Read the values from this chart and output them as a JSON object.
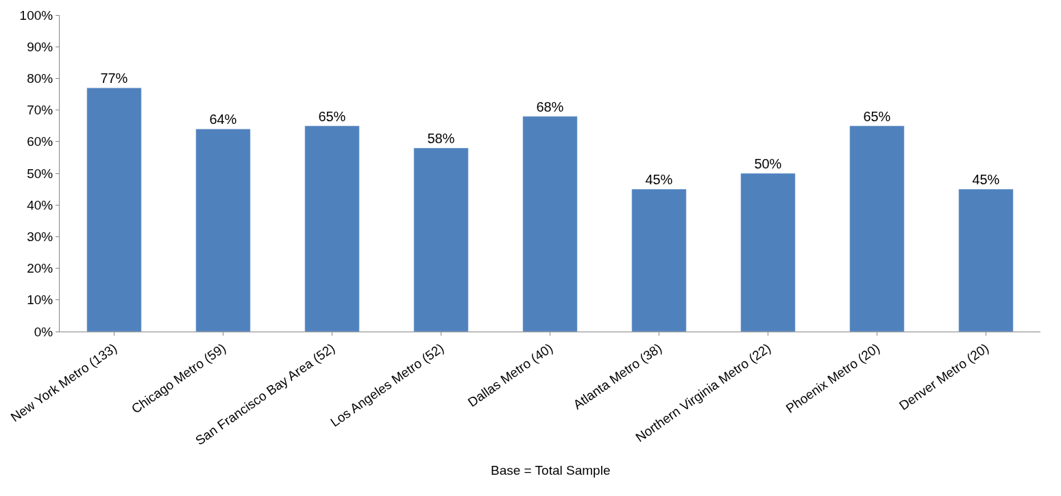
{
  "chart_data": {
    "type": "bar",
    "categories": [
      "New York Metro (133)",
      "Chicago Metro (59)",
      "San Francisco Bay Area (52)",
      "Los Angeles Metro (52)",
      "Dallas Metro (40)",
      "Atlanta Metro (38)",
      "Northern Virginia Metro (22)",
      "Phoenix Metro (20)",
      "Denver Metro (20)"
    ],
    "values": [
      77,
      64,
      65,
      58,
      68,
      45,
      50,
      65,
      45
    ],
    "value_labels": [
      "77%",
      "64%",
      "65%",
      "58%",
      "68%",
      "45%",
      "50%",
      "65%",
      "45%"
    ],
    "color": "#4f81bd",
    "ylim": [
      0,
      100
    ],
    "yticks": [
      {
        "value": 0,
        "label": "0%"
      },
      {
        "value": 10,
        "label": "10%"
      },
      {
        "value": 20,
        "label": "20%"
      },
      {
        "value": 30,
        "label": "30%"
      },
      {
        "value": 40,
        "label": "40%"
      },
      {
        "value": 50,
        "label": "50%"
      },
      {
        "value": 60,
        "label": "60%"
      },
      {
        "value": 70,
        "label": "70%"
      },
      {
        "value": 80,
        "label": "80%"
      },
      {
        "value": 90,
        "label": "90%"
      },
      {
        "value": 100,
        "label": "100%"
      }
    ],
    "grid": false,
    "legend": false,
    "annotations": [
      "Base = Total Sample"
    ]
  }
}
